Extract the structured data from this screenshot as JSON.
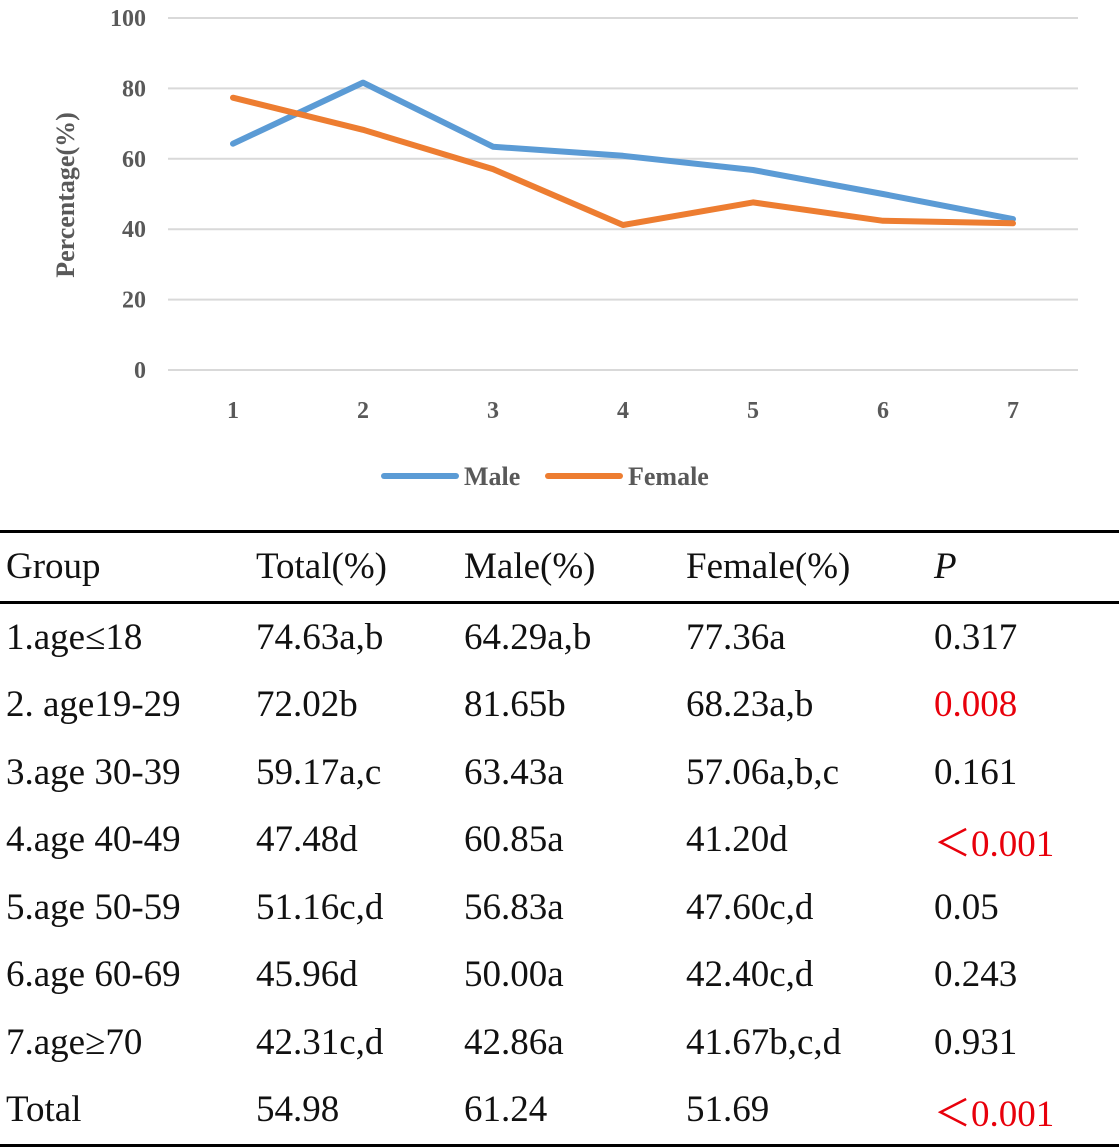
{
  "chart_data": {
    "type": "line",
    "categories": [
      "1",
      "2",
      "3",
      "4",
      "5",
      "6",
      "7"
    ],
    "series": [
      {
        "name": "Male",
        "color": "#5b9bd5",
        "values": [
          64.29,
          81.65,
          63.43,
          60.85,
          56.83,
          50.0,
          42.86
        ]
      },
      {
        "name": "Female",
        "color": "#ed7d31",
        "values": [
          77.36,
          68.23,
          57.06,
          41.2,
          47.6,
          42.4,
          41.67
        ]
      }
    ],
    "ylabel": "Percentage(%)",
    "ylim": [
      0,
      100
    ],
    "yticks": [
      "0",
      "20",
      "40",
      "60",
      "80",
      "100"
    ],
    "grid": true,
    "legend": "bottom-center"
  },
  "table": {
    "headers": [
      "Group",
      "Total(%)",
      "Male(%)",
      "Female(%)",
      "P"
    ],
    "rows": [
      {
        "group": "1.age≤18",
        "total": "74.63a,b",
        "male": "64.29a,b",
        "female": "77.36a",
        "p": "0.317",
        "significant": false
      },
      {
        "group": "2. age19-29",
        "total": "72.02b",
        "male": "81.65b",
        "female": "68.23a,b",
        "p": "0.008",
        "significant": true
      },
      {
        "group": "3.age 30-39",
        "total": "59.17a,c",
        "male": "63.43a",
        "female": "57.06a,b,c",
        "p": "0.161",
        "significant": false
      },
      {
        "group": "4.age 40-49",
        "total": "47.48d",
        "male": "60.85a",
        "female": "41.20d",
        "p": "＜0.001",
        "significant": true
      },
      {
        "group": "5.age 50-59",
        "total": "51.16c,d",
        "male": "56.83a",
        "female": "47.60c,d",
        "p": "0.05",
        "significant": false
      },
      {
        "group": "6.age 60-69",
        "total": "45.96d",
        "male": "50.00a",
        "female": "42.40c,d",
        "p": "0.243",
        "significant": false
      },
      {
        "group": "7.age≥70",
        "total": "42.31c,d",
        "male": "42.86a",
        "female": "41.67b,c,d",
        "p": "0.931",
        "significant": false
      },
      {
        "group": "Total",
        "total": "54.98",
        "male": "61.24",
        "female": "51.69",
        "p": "＜0.001",
        "significant": true
      }
    ]
  }
}
